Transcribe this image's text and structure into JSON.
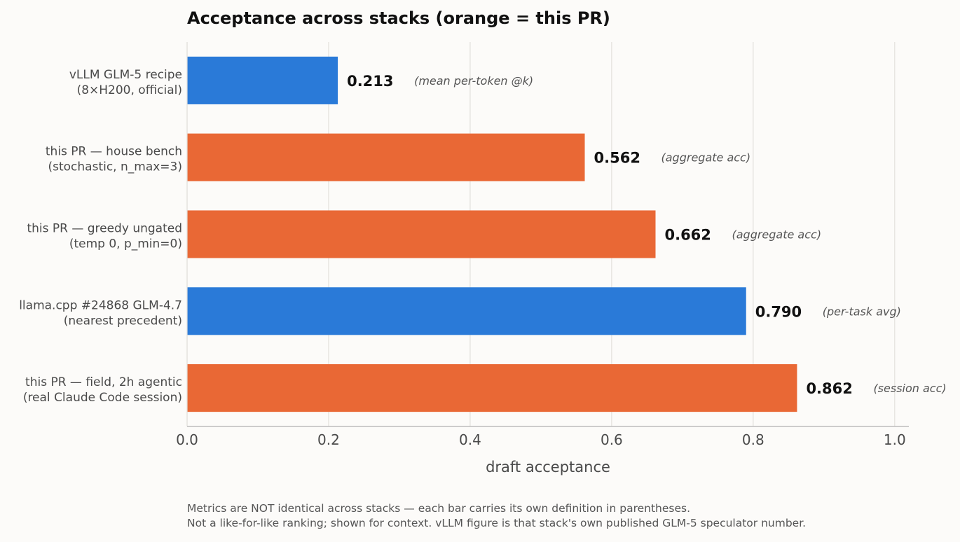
{
  "chart_data": {
    "type": "bar",
    "orientation": "horizontal",
    "title": "Acceptance across stacks  (orange = this PR)",
    "xlabel": "draft acceptance",
    "xlim": [
      0,
      1.02
    ],
    "xticks": [
      "0.0",
      "0.2",
      "0.4",
      "0.6",
      "0.8",
      "1.0"
    ],
    "grid": "vertical",
    "categories": [
      [
        "vLLM GLM-5 recipe",
        "(8×H200, official)"
      ],
      [
        "this PR — house bench",
        "(stochastic, n_max=3)"
      ],
      [
        "this PR — greedy ungated",
        "(temp 0, p_min=0)"
      ],
      [
        "llama.cpp #24868 GLM-4.7",
        "(nearest precedent)"
      ],
      [
        "this PR — field, 2h agentic",
        "(real Claude Code session)"
      ]
    ],
    "values": [
      0.213,
      0.562,
      0.662,
      0.79,
      0.862
    ],
    "value_labels": [
      "0.213",
      "0.562",
      "0.662",
      "0.790",
      "0.862"
    ],
    "notes": [
      "(mean per-token @k)",
      "(aggregate acc)",
      "(aggregate acc)",
      "(per-task avg)",
      "(session acc)"
    ],
    "is_this_pr": [
      false,
      true,
      true,
      false,
      true
    ],
    "colors": {
      "this_pr": "#e96835",
      "other": "#2a7ad8",
      "grid": "#e2e0dc",
      "axis": "#bdbdbd"
    }
  },
  "footnote": {
    "line1": "Metrics are NOT identical across stacks — each bar carries its own definition in parentheses.",
    "line2": "Not a like-for-like ranking; shown for context. vLLM figure is that stack's own published GLM-5 speculator number."
  }
}
